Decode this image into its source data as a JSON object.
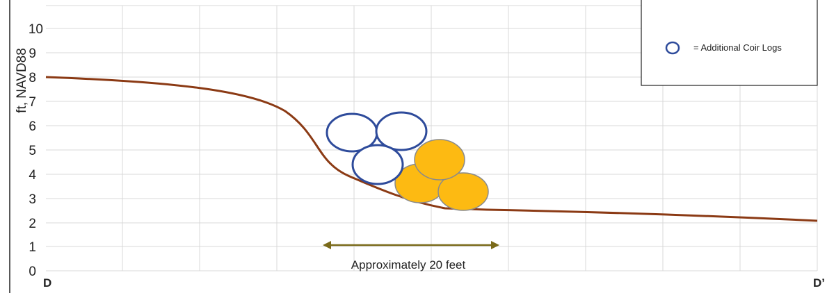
{
  "y_axis": {
    "label": "ft, NAVD88",
    "ticks": [
      "0",
      "1",
      "2",
      "3",
      "4",
      "5",
      "6",
      "7",
      "8",
      "9",
      "10"
    ]
  },
  "x_labels": {
    "start": "D",
    "end": "D’"
  },
  "dimension": {
    "label": "Approximately 20 feet"
  },
  "legend": {
    "label": "= Additional Coir Logs"
  },
  "colors": {
    "ground": "#8B3A14",
    "new_log_stroke": "#2E4B9B",
    "existing_log_fill": "#FDBA12",
    "existing_log_stroke": "#8A8A8A",
    "dimension_arrow": "#7A6A1A",
    "grid": "#D9D9D9"
  }
}
